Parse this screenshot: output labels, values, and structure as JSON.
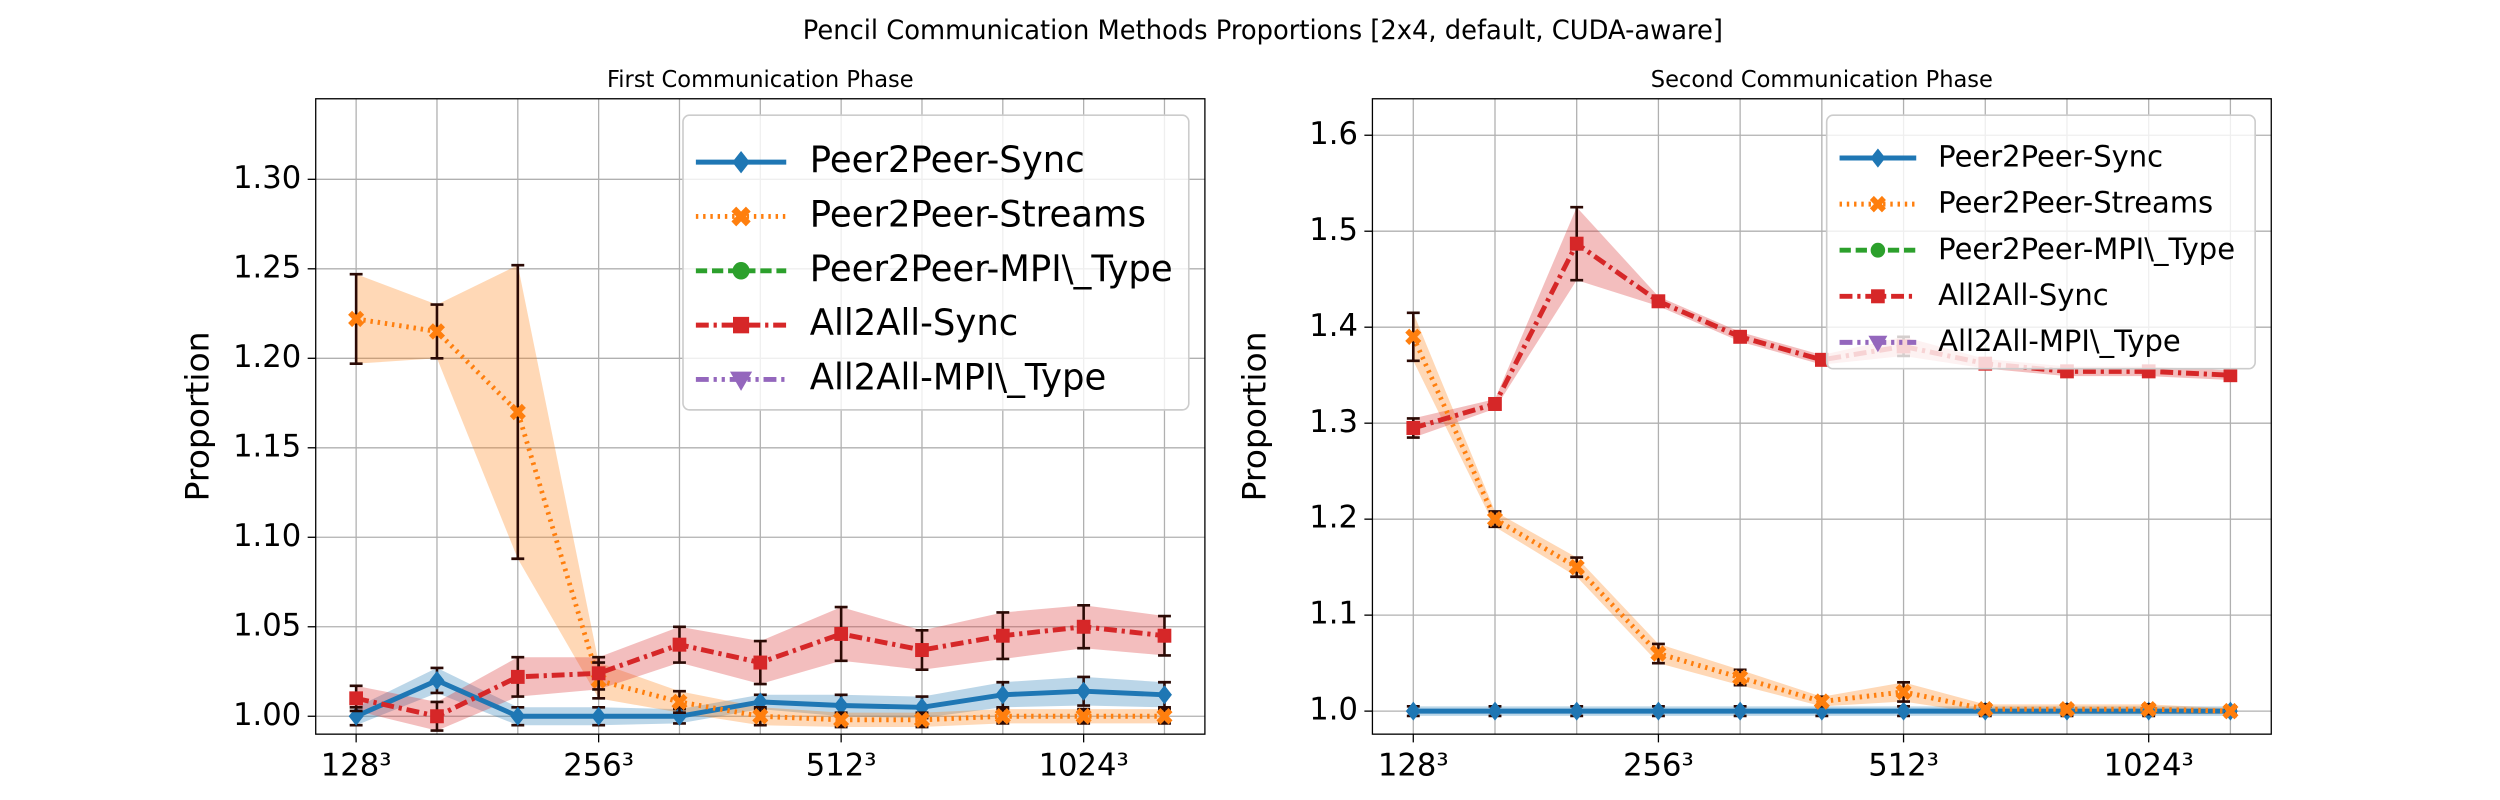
{
  "title": "Pencil Communication Methods Proportions [2x4, default, CUDA-aware]",
  "chart_data": [
    {
      "type": "line",
      "title": "First Communication Phase",
      "y_label": "Proportion",
      "categories": [
        "128³",
        null,
        null,
        "256³",
        null,
        null,
        "512³",
        null,
        null,
        "1024³",
        null
      ],
      "ylim": [
        0.99,
        1.345
      ],
      "yticks": [
        {
          "value": 1.0,
          "label": "1.00"
        },
        {
          "value": 1.05,
          "label": "1.05"
        },
        {
          "value": 1.1,
          "label": "1.10"
        },
        {
          "value": 1.15,
          "label": "1.15"
        },
        {
          "value": 1.2,
          "label": "1.20"
        },
        {
          "value": 1.25,
          "label": "1.25"
        },
        {
          "value": 1.3,
          "label": "1.30"
        }
      ],
      "grid": true,
      "legend": "upper right",
      "series": [
        {
          "name": "Peer2Peer-Sync",
          "color": "#1f77b4",
          "marker": "diamond",
          "linestyle": "solid",
          "values": [
            1.0,
            1.02,
            1.0,
            1.0,
            1.0,
            1.008,
            1.006,
            1.005,
            1.012,
            1.014,
            1.012
          ],
          "errors": [
            0.005,
            0.007,
            0.005,
            0.005,
            0.004,
            0.004,
            0.006,
            0.006,
            0.007,
            0.008,
            0.007
          ]
        },
        {
          "name": "Peer2Peer-Streams",
          "color": "#ff7f0e",
          "marker": "x",
          "linestyle": "dotted",
          "values": [
            1.222,
            1.215,
            1.17,
            1.02,
            1.008,
            1.0,
            0.998,
            0.998,
            1.0,
            1.0,
            1.0
          ],
          "errors": [
            0.025,
            0.015,
            0.082,
            0.01,
            0.006,
            0.005,
            0.004,
            0.004,
            0.004,
            0.004,
            0.004
          ]
        },
        {
          "name": "Peer2Peer-MPI\\_Type",
          "color": "#2ca02c",
          "marker": "circle",
          "linestyle": "dashed",
          "values": [
            null,
            null,
            null,
            null,
            null,
            null,
            null,
            null,
            null,
            null,
            null
          ]
        },
        {
          "name": "All2All-Sync",
          "color": "#d62728",
          "marker": "square",
          "linestyle": "dashdot",
          "values": [
            1.01,
            1.0,
            1.022,
            1.024,
            1.04,
            1.03,
            1.046,
            1.037,
            1.045,
            1.05,
            1.045
          ],
          "errors": [
            0.007,
            0.008,
            0.011,
            0.009,
            0.01,
            0.012,
            0.015,
            0.011,
            0.013,
            0.012,
            0.011
          ]
        },
        {
          "name": "All2All-MPI\\_Type",
          "color": "#9467bd",
          "marker": "triangle-down",
          "linestyle": "dashdotdot",
          "values": [
            null,
            null,
            null,
            null,
            null,
            null,
            null,
            null,
            null,
            null,
            null
          ]
        }
      ]
    },
    {
      "type": "line",
      "title": "Second Communication Phase",
      "y_label": "Proportion",
      "categories": [
        "128³",
        null,
        null,
        "256³",
        null,
        null,
        "512³",
        null,
        null,
        "1024³",
        null
      ],
      "ylim": [
        0.976,
        1.638
      ],
      "yticks": [
        {
          "value": 1.0,
          "label": "1.0"
        },
        {
          "value": 1.1,
          "label": "1.1"
        },
        {
          "value": 1.2,
          "label": "1.2"
        },
        {
          "value": 1.3,
          "label": "1.3"
        },
        {
          "value": 1.4,
          "label": "1.4"
        },
        {
          "value": 1.5,
          "label": "1.5"
        },
        {
          "value": 1.6,
          "label": "1.6"
        }
      ],
      "grid": true,
      "legend": "upper right",
      "series": [
        {
          "name": "Peer2Peer-Sync",
          "color": "#1f77b4",
          "marker": "diamond",
          "linestyle": "solid",
          "values": [
            1.0,
            1.0,
            1.0,
            1.0,
            1.0,
            1.0,
            1.0,
            1.0,
            1.0,
            1.0,
            1.0
          ],
          "errors": [
            0.005,
            0.005,
            0.005,
            0.005,
            0.005,
            0.005,
            0.005,
            0.005,
            0.005,
            0.005,
            0.005
          ]
        },
        {
          "name": "Peer2Peer-Streams",
          "color": "#ff7f0e",
          "marker": "x",
          "linestyle": "dotted",
          "values": [
            1.39,
            1.2,
            1.15,
            1.06,
            1.035,
            1.01,
            1.02,
            1.002,
            1.002,
            1.002,
            1.0
          ],
          "errors": [
            0.025,
            0.008,
            0.01,
            0.01,
            0.008,
            0.005,
            0.01,
            0.005,
            0.005,
            0.005,
            0.003
          ]
        },
        {
          "name": "Peer2Peer-MPI\\_Type",
          "color": "#2ca02c",
          "marker": "circle",
          "linestyle": "dashed",
          "values": [
            null,
            null,
            null,
            null,
            null,
            null,
            null,
            null,
            null,
            null,
            null
          ]
        },
        {
          "name": "All2All-Sync",
          "color": "#d62728",
          "marker": "square",
          "linestyle": "dashdot",
          "values": [
            1.295,
            1.32,
            1.487,
            1.427,
            1.39,
            1.366,
            1.38,
            1.362,
            1.354,
            1.354,
            1.35
          ],
          "errors": [
            0.01,
            0.005,
            0.038,
            0.005,
            0.005,
            0.005,
            0.01,
            0.005,
            0.005,
            0.005,
            0.005
          ]
        },
        {
          "name": "All2All-MPI\\_Type",
          "color": "#9467bd",
          "marker": "triangle-down",
          "linestyle": "dashdotdot",
          "values": [
            null,
            null,
            null,
            null,
            null,
            null,
            null,
            null,
            null,
            null,
            null
          ]
        }
      ]
    }
  ]
}
